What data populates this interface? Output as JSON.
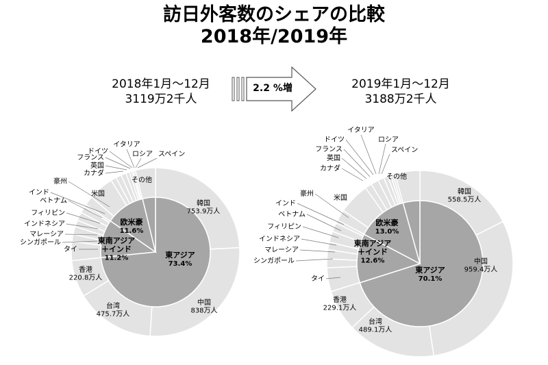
{
  "title": {
    "line1": "訪日外客数のシェアの比較",
    "line2": "2018年/2019年"
  },
  "comparison": {
    "growth_label": "2.2 %増"
  },
  "colors": {
    "outer_fill": "#e3e3e3",
    "inner_fill": "#a6a6a6",
    "stroke": "#ffffff",
    "arrow_fill": "#ffffff",
    "arrow_stroke": "#555555"
  },
  "chart_data": [
    {
      "type": "pie",
      "variant": "double-donut",
      "period": "2018年1月～12月",
      "total": "3119万2千人",
      "outer": [
        {
          "name": "韓国",
          "value_label": "753.9万人",
          "value": 753.9
        },
        {
          "name": "中国",
          "value_label": "838万人",
          "value": 838
        },
        {
          "name": "台湾",
          "value_label": "475.7万人",
          "value": 475.7
        },
        {
          "name": "香港",
          "value_label": "220.8万人",
          "value": 220.8
        },
        {
          "name": "タイ",
          "value": 113
        },
        {
          "name": "シンガポール",
          "value": 43.7
        },
        {
          "name": "マレーシア",
          "value": 46.8
        },
        {
          "name": "インドネシア",
          "value": 39.7
        },
        {
          "name": "フィリピン",
          "value": 50.4
        },
        {
          "name": "ベトナム",
          "value": 38.9
        },
        {
          "name": "インド",
          "value": 15.4
        },
        {
          "name": "豪州",
          "value": 55.2
        },
        {
          "name": "米国",
          "value": 152.6
        },
        {
          "name": "カナダ",
          "value": 33
        },
        {
          "name": "英国",
          "value": 33.4
        },
        {
          "name": "フランス",
          "value": 30.5
        },
        {
          "name": "ドイツ",
          "value": 21.5
        },
        {
          "name": "イタリア",
          "value": 15
        },
        {
          "name": "ロシア",
          "value": 9.5
        },
        {
          "name": "スペイン",
          "value": 11.9
        },
        {
          "name": "その他",
          "value": 120.3
        }
      ],
      "inner": [
        {
          "name": "東アジア",
          "value_label": "73.4%",
          "value": 73.4
        },
        {
          "name": "東南アジア\n＋インド",
          "value_label": "11.2%",
          "value": 11.2
        },
        {
          "name": "欧米豪",
          "value_label": "11.6%",
          "value": 11.6
        },
        {
          "name": "",
          "value": 3.8
        }
      ]
    },
    {
      "type": "pie",
      "variant": "double-donut",
      "period": "2019年1月～12月",
      "total": "3188万2千人",
      "outer": [
        {
          "name": "韓国",
          "value_label": "558.5万人",
          "value": 558.5
        },
        {
          "name": "中国",
          "value_label": "959.4万人",
          "value": 959.4
        },
        {
          "name": "台湾",
          "value_label": "489.1万人",
          "value": 489.1
        },
        {
          "name": "香港",
          "value_label": "229.1万人",
          "value": 229.1
        },
        {
          "name": "タイ",
          "value": 131.9
        },
        {
          "name": "シンガポール",
          "value": 49.2
        },
        {
          "name": "マレーシア",
          "value": 50.2
        },
        {
          "name": "インドネシア",
          "value": 41.3
        },
        {
          "name": "フィリピン",
          "value": 61.3
        },
        {
          "name": "ベトナム",
          "value": 49.5
        },
        {
          "name": "インド",
          "value": 17.5
        },
        {
          "name": "豪州",
          "value": 62.2
        },
        {
          "name": "米国",
          "value": 172.4
        },
        {
          "name": "カナダ",
          "value": 37.5
        },
        {
          "name": "英国",
          "value": 42.4
        },
        {
          "name": "フランス",
          "value": 33.6
        },
        {
          "name": "ドイツ",
          "value": 23.7
        },
        {
          "name": "イタリア",
          "value": 16.3
        },
        {
          "name": "ロシア",
          "value": 12
        },
        {
          "name": "スペイン",
          "value": 13.1
        },
        {
          "name": "その他",
          "value": 137.2
        }
      ],
      "inner": [
        {
          "name": "東アジア",
          "value_label": "70.1%",
          "value": 70.1
        },
        {
          "name": "東南アジア\n＋インド",
          "value_label": "12.6%",
          "value": 12.6
        },
        {
          "name": "欧米豪",
          "value_label": "13.0%",
          "value": 13.0
        },
        {
          "name": "",
          "value": 4.3
        }
      ]
    }
  ]
}
